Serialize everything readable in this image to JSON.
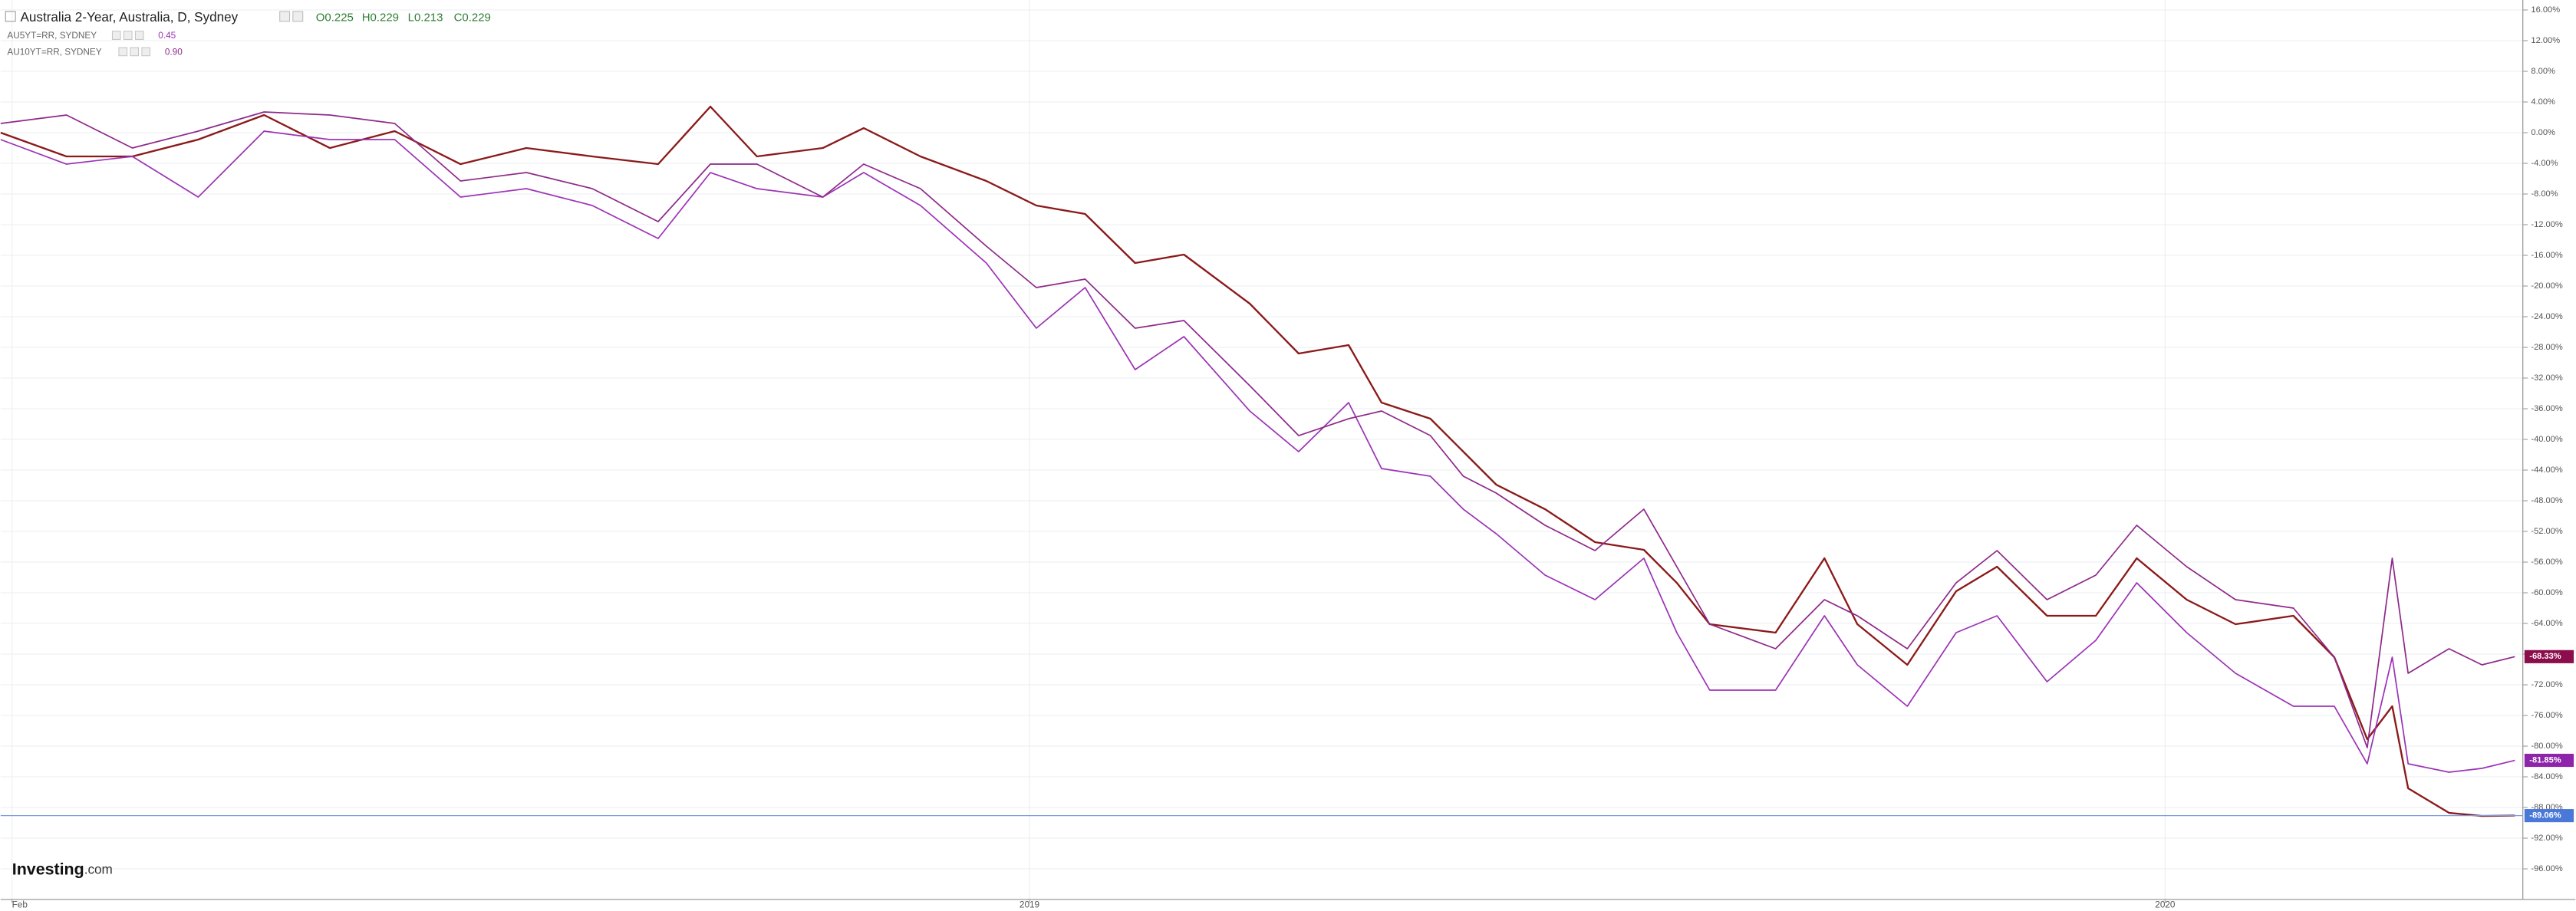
{
  "chart_data": {
    "type": "line",
    "ohlc": [
      "O0.225",
      "H0.229",
      "L0.213",
      "C0.229"
    ],
    "brand": "Investing",
    "brand_suffix": ".com",
    "x": [
      2018.094,
      2018.152,
      2018.21,
      2018.268,
      2018.326,
      2018.384,
      2018.441,
      2018.499,
      2018.557,
      2018.615,
      2018.673,
      2018.719,
      2018.76,
      2018.818,
      2018.854,
      2018.904,
      2018.962,
      2019.006,
      2019.049,
      2019.093,
      2019.136,
      2019.194,
      2019.237,
      2019.281,
      2019.31,
      2019.353,
      2019.382,
      2019.411,
      2019.454,
      2019.498,
      2019.541,
      2019.57,
      2019.599,
      2019.657,
      2019.7,
      2019.729,
      2019.773,
      2019.816,
      2019.852,
      2019.896,
      2019.939,
      2019.975,
      2020.019,
      2020.062,
      2020.113,
      2020.149,
      2020.178,
      2020.2,
      2020.214,
      2020.25,
      2020.279,
      2020.308
    ],
    "xlim": [
      2018.094,
      2020.315
    ],
    "xticks": [
      {
        "value": 2018.104,
        "label": "Feb"
      },
      2019,
      2020
    ],
    "ylim": [
      -100,
      17.3
    ],
    "yticks": [
      {
        "value": 16,
        "label": "16.00%"
      },
      {
        "value": 12,
        "label": "12.00%"
      },
      {
        "value": 8,
        "label": "8.00%"
      },
      {
        "value": 4,
        "label": "4.00%"
      },
      {
        "value": 0,
        "label": "0.00%"
      },
      {
        "value": -4,
        "label": "-4.00%"
      },
      {
        "value": -8,
        "label": "-8.00%"
      },
      {
        "value": -12,
        "label": "-12.00%"
      },
      {
        "value": -16,
        "label": "-16.00%"
      },
      {
        "value": -20,
        "label": "-20.00%"
      },
      {
        "value": -24,
        "label": "-24.00%"
      },
      {
        "value": -28,
        "label": "-28.00%"
      },
      {
        "value": -32,
        "label": "-32.00%"
      },
      {
        "value": -36,
        "label": "-36.00%"
      },
      {
        "value": -40,
        "label": "-40.00%"
      },
      {
        "value": -44,
        "label": "-44.00%"
      },
      {
        "value": -48,
        "label": "-48.00%"
      },
      {
        "value": -52,
        "label": "-52.00%"
      },
      {
        "value": -56,
        "label": "-56.00%"
      },
      {
        "value": -60,
        "label": "-60.00%"
      },
      {
        "value": -64,
        "label": "-64.00%"
      },
      {
        "value": -68,
        "label": "-68.00%"
      },
      {
        "value": -72,
        "label": "-72.00%"
      },
      {
        "value": -76,
        "label": "-76.00%"
      },
      {
        "value": -80,
        "label": "-80.00%"
      },
      {
        "value": -84,
        "label": "-84.00%"
      },
      {
        "value": -88,
        "label": "-88.00%"
      },
      {
        "value": -92,
        "label": "-92.00%"
      },
      {
        "value": -96,
        "label": "-96.00%"
      }
    ],
    "grid": true,
    "series": [
      {
        "name": "Australia 2-Year, Australia, D, Sydney",
        "color": "#8b1a1a",
        "tag_color": "#4a78d8",
        "price_line": true,
        "values": [
          0,
          -3.1,
          -3.1,
          -0.9,
          2.3,
          -2.0,
          0.2,
          -4.1,
          -2.0,
          -3.1,
          -4.1,
          3.4,
          -3.1,
          -2.0,
          0.6,
          -3.1,
          -6.3,
          -9.5,
          -10.6,
          -17.0,
          -15.9,
          -22.3,
          -28.8,
          -27.7,
          -35.2,
          -37.3,
          -41.6,
          -45.9,
          -49.1,
          -53.4,
          -54.4,
          -58.7,
          -64.1,
          -65.2,
          -55.5,
          -64.1,
          -69.4,
          -59.8,
          -56.6,
          -63.0,
          -63.0,
          -55.5,
          -60.9,
          -64.1,
          -63.0,
          -68.4,
          -79.1,
          -74.8,
          -85.5,
          -88.7,
          -89.1,
          -89.06
        ],
        "value_labels": [
          null,
          null,
          null,
          null,
          null,
          null,
          null,
          null,
          null,
          null,
          null,
          null,
          null,
          null,
          null,
          null,
          null,
          null,
          null,
          null,
          null,
          null,
          null,
          null,
          null,
          null,
          null,
          null,
          null,
          null,
          null,
          null,
          null,
          null,
          null,
          null,
          null,
          null,
          null,
          null,
          null,
          null,
          null,
          null,
          null,
          null,
          null,
          null,
          null,
          null,
          null,
          "-89.06%"
        ]
      },
      {
        "name": "AU5YT=RR, SYDNEY",
        "quote": "0.45",
        "color": "#9c33b5",
        "tag_color": "#8e24aa",
        "values": [
          -0.9,
          -4.1,
          -3.1,
          -8.4,
          0.2,
          -0.9,
          -0.9,
          -8.4,
          -7.3,
          -9.5,
          -13.8,
          -5.2,
          -7.3,
          -8.4,
          -5.2,
          -9.5,
          -17.0,
          -25.5,
          -20.2,
          -30.9,
          -26.6,
          -36.3,
          -41.6,
          -35.2,
          -43.8,
          -44.8,
          -49.1,
          -52.3,
          -57.7,
          -60.9,
          -55.5,
          -65.2,
          -72.7,
          -72.7,
          -63.0,
          -69.4,
          -74.8,
          -65.2,
          -63.0,
          -71.6,
          -66.2,
          -58.7,
          -65.2,
          -70.5,
          -74.8,
          -74.8,
          -82.3,
          -68.4,
          -82.3,
          -83.4,
          -82.9,
          -81.85
        ],
        "value_labels": [
          null,
          null,
          null,
          null,
          null,
          null,
          null,
          null,
          null,
          null,
          null,
          null,
          null,
          null,
          null,
          null,
          null,
          null,
          null,
          null,
          null,
          null,
          null,
          null,
          null,
          null,
          null,
          null,
          null,
          null,
          null,
          null,
          null,
          null,
          null,
          null,
          null,
          null,
          null,
          null,
          null,
          null,
          null,
          null,
          null,
          null,
          null,
          null,
          null,
          null,
          null,
          "-81.85%"
        ]
      },
      {
        "name": "AU10YT=RR, SYDNEY",
        "quote": "0.90",
        "color": "#8e2a8a",
        "tag_color": "#8b0d4b",
        "values": [
          1.2,
          2.3,
          -2.0,
          0.2,
          2.7,
          2.3,
          1.2,
          -6.3,
          -5.2,
          -7.3,
          -11.6,
          -4.1,
          -4.1,
          -8.4,
          -4.1,
          -7.3,
          -14.8,
          -20.2,
          -19.1,
          -25.5,
          -24.5,
          -33.0,
          -39.5,
          -37.3,
          -36.3,
          -39.5,
          -44.8,
          -47.0,
          -51.2,
          -54.5,
          -49.1,
          -56.6,
          -64.1,
          -67.3,
          -60.9,
          -63.0,
          -67.3,
          -58.7,
          -54.5,
          -60.9,
          -57.7,
          -51.2,
          -56.6,
          -60.9,
          -62.0,
          -68.4,
          -80.2,
          -55.5,
          -70.5,
          -67.3,
          -69.4,
          -68.33
        ],
        "value_labels": [
          null,
          null,
          null,
          null,
          null,
          null,
          null,
          null,
          null,
          null,
          null,
          null,
          null,
          null,
          null,
          null,
          null,
          null,
          null,
          null,
          null,
          null,
          null,
          null,
          null,
          null,
          null,
          null,
          null,
          null,
          null,
          null,
          null,
          null,
          null,
          null,
          null,
          null,
          null,
          null,
          null,
          null,
          null,
          null,
          null,
          null,
          null,
          null,
          null,
          null,
          null,
          "-68.33%"
        ]
      }
    ]
  }
}
